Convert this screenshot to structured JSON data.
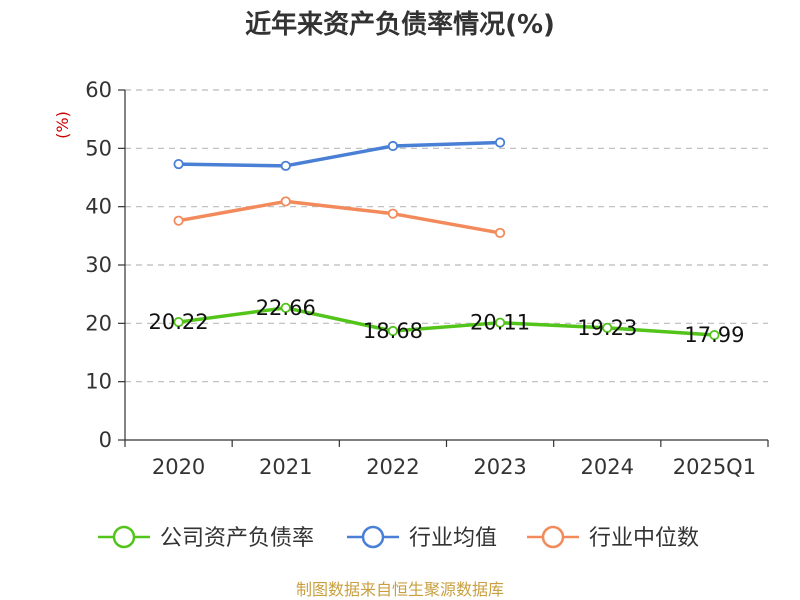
{
  "chart_data": {
    "type": "line",
    "title": "近年来资产负债率情况(%)",
    "ylabel": "(%)",
    "xlabel": "",
    "categories": [
      "2020",
      "2021",
      "2022",
      "2023",
      "2024",
      "2025Q1"
    ],
    "ylim": [
      0,
      60
    ],
    "yticks": [
      0,
      10,
      20,
      30,
      40,
      50,
      60
    ],
    "grid": true,
    "legend_position": "bottom",
    "series": [
      {
        "name": "公司资产负债率",
        "color": "#52c41a",
        "values": [
          20.22,
          22.66,
          18.68,
          20.11,
          19.23,
          17.99
        ],
        "labels": [
          "20.22",
          "22.66",
          "18.68",
          "20.11",
          "19.23",
          "17.99"
        ]
      },
      {
        "name": "行业均值",
        "color": "#4a7fd6",
        "values": [
          47.3,
          47.0,
          50.4,
          51.0,
          null,
          null
        ]
      },
      {
        "name": "行业中位数",
        "color": "#f28a5c",
        "values": [
          37.6,
          40.9,
          38.8,
          35.5,
          null,
          null
        ]
      }
    ]
  },
  "source": "制图数据来自恒生聚源数据库"
}
